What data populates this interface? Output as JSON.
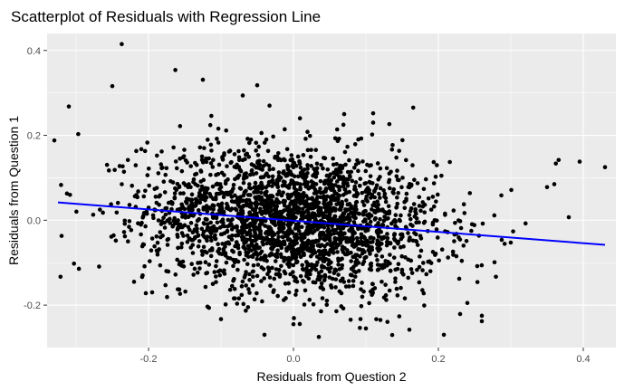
{
  "chart_data": {
    "type": "scatter",
    "title": "Scatterplot of Residuals with Regression Line",
    "xlabel": "Residuals from Question 2",
    "ylabel": "Residuals from Question 1",
    "xlim": [
      -0.34,
      0.445
    ],
    "ylim": [
      -0.3,
      0.44
    ],
    "x_ticks": [
      -0.2,
      0.0,
      0.2,
      0.4
    ],
    "x_tick_labels": [
      "-0.2",
      "0.0",
      "0.2",
      "0.4"
    ],
    "y_ticks": [
      -0.2,
      0.0,
      0.2,
      0.4
    ],
    "y_tick_labels": [
      "-0.2",
      "0.0",
      "0.2",
      "0.4"
    ],
    "grid": true,
    "legend": "none",
    "panel_color": "#ebebeb",
    "point_color": "#000000",
    "regression_line": {
      "color": "#0000ff",
      "x": [
        -0.325,
        0.43
      ],
      "y": [
        0.042,
        -0.058
      ]
    },
    "n_points_estimate": 2500,
    "cloud_description": {
      "center": [
        0.0,
        0.0
      ],
      "sd_x": 0.1,
      "sd_y": 0.085,
      "correlation": -0.16
    },
    "notable_points": [
      {
        "x": -0.237,
        "y": 0.415
      },
      {
        "x": -0.25,
        "y": 0.316
      },
      {
        "x": -0.31,
        "y": 0.268
      },
      {
        "x": -0.163,
        "y": 0.354
      },
      {
        "x": -0.125,
        "y": 0.331
      },
      {
        "x": -0.07,
        "y": 0.294
      },
      {
        "x": -0.05,
        "y": 0.318
      },
      {
        "x": -0.033,
        "y": 0.27
      },
      {
        "x": 0.11,
        "y": 0.252
      },
      {
        "x": 0.11,
        "y": 0.23
      },
      {
        "x": 0.07,
        "y": 0.25
      },
      {
        "x": -0.33,
        "y": 0.188
      },
      {
        "x": -0.297,
        "y": 0.203
      },
      {
        "x": -0.32,
        "y": -0.037
      },
      {
        "x": 0.43,
        "y": 0.125
      },
      {
        "x": 0.395,
        "y": 0.138
      },
      {
        "x": 0.366,
        "y": 0.142
      },
      {
        "x": 0.38,
        "y": 0.007
      },
      {
        "x": 0.35,
        "y": 0.078
      },
      {
        "x": 0.36,
        "y": 0.085
      },
      {
        "x": 0.26,
        "y": -0.225
      },
      {
        "x": 0.26,
        "y": -0.238
      },
      {
        "x": 0.24,
        "y": -0.195
      },
      {
        "x": 0.23,
        "y": -0.221
      },
      {
        "x": -0.1,
        "y": -0.233
      },
      {
        "x": -0.04,
        "y": -0.27
      },
      {
        "x": 0.035,
        "y": -0.275
      },
      {
        "x": 0.0,
        "y": -0.245
      },
      {
        "x": 0.12,
        "y": -0.235
      },
      {
        "x": 0.16,
        "y": -0.258
      },
      {
        "x": -0.22,
        "y": -0.145
      },
      {
        "x": -0.195,
        "y": -0.17
      },
      {
        "x": 0.1,
        "y": -0.255
      }
    ]
  }
}
